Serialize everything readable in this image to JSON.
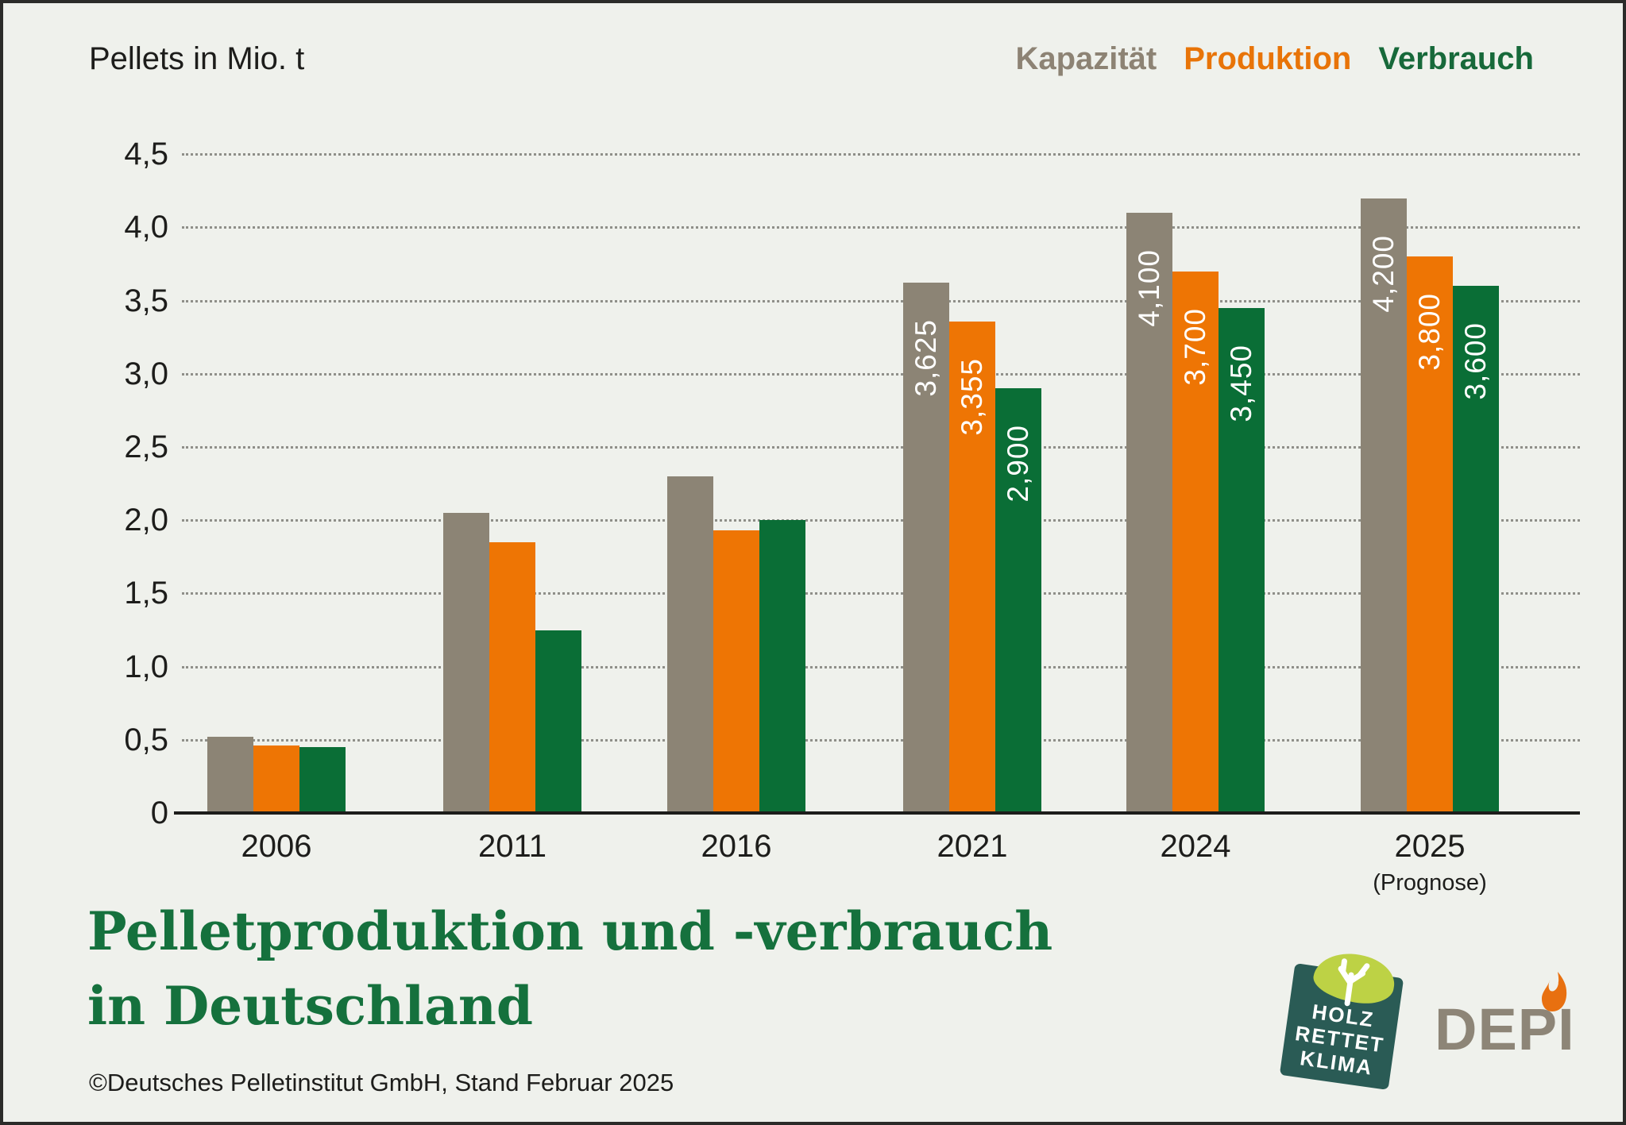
{
  "header": {
    "unit_label": "Pellets in Mio. t"
  },
  "legend": [
    {
      "label": "Kapazität",
      "color": "#8d8374"
    },
    {
      "label": "Produktion",
      "color": "#e87408"
    },
    {
      "label": "Verbrauch",
      "color": "#17693a"
    }
  ],
  "chart_data": {
    "type": "bar",
    "title": "Pelletproduktion und -verbrauch in Deutschland",
    "ylabel": "Pellets in Mio. t",
    "ylim": [
      0,
      4.5
    ],
    "grid": "dotted horizontal",
    "legend_position": "top-right",
    "categories": [
      "2006",
      "2011",
      "2016",
      "2021",
      "2024",
      "2025"
    ],
    "category_notes": [
      null,
      null,
      null,
      null,
      null,
      "(Prognose)"
    ],
    "series": [
      {
        "name": "Kapazität",
        "color": "#8c8475",
        "values": [
          0.52,
          2.05,
          2.3,
          3.625,
          4.1,
          4.2
        ],
        "bar_labels": [
          null,
          null,
          null,
          "3,625",
          "4,100",
          "4,200"
        ]
      },
      {
        "name": "Produktion",
        "color": "#ee7504",
        "values": [
          0.46,
          1.85,
          1.93,
          3.355,
          3.7,
          3.8
        ],
        "bar_labels": [
          null,
          null,
          null,
          "3,355",
          "3,700",
          "3,800"
        ]
      },
      {
        "name": "Verbrauch",
        "color": "#0a6e36",
        "values": [
          0.45,
          1.25,
          2.0,
          2.9,
          3.45,
          3.6
        ],
        "bar_labels": [
          null,
          null,
          null,
          "2,900",
          "3,450",
          "3,600"
        ]
      }
    ],
    "y_ticks": [
      {
        "value": 4.5,
        "label": "4,5"
      },
      {
        "value": 4.0,
        "label": "4,0"
      },
      {
        "value": 3.5,
        "label": "3,5"
      },
      {
        "value": 3.0,
        "label": "3,0"
      },
      {
        "value": 2.5,
        "label": "2,5"
      },
      {
        "value": 2.0,
        "label": "2,0"
      },
      {
        "value": 1.5,
        "label": "1,5"
      },
      {
        "value": 1.0,
        "label": "1,0"
      },
      {
        "value": 0.5,
        "label": "0,5"
      },
      {
        "value": 0.0,
        "label": "0"
      }
    ]
  },
  "title": {
    "line1": "Pelletproduktion und -verbrauch",
    "line2": "in Deutschland",
    "color": "#15713d"
  },
  "footer": {
    "text": "©Deutsches Pelletinstitut GmbH, Stand Februar 2025"
  },
  "logos": {
    "holz": {
      "lines": [
        "HOLZ",
        "RETTET",
        "KLIMA"
      ],
      "box_color": "#2a5b55",
      "canopy_color": "#bdd245"
    },
    "depi": {
      "text": "DEPI",
      "text_color": "#8d8577",
      "flame_color": "#e87010"
    }
  },
  "colors": {
    "background": "#eff1ec",
    "frame_border": "#2b2b29",
    "axis": "#1d1d1b",
    "gridline": "#8f8f89"
  }
}
